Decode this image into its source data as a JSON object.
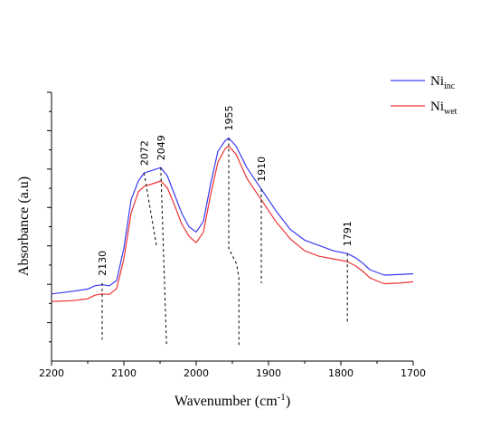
{
  "chart_data": {
    "type": "line",
    "xlabel": "Wavenumber (cm",
    "xlabel_sup": "-1",
    "xlabel_suffix": ")",
    "ylabel": "Absorbance (a.u)",
    "xlim": [
      2200,
      1700
    ],
    "x_reversed": true,
    "x_ticks": [
      2200,
      2100,
      2000,
      1900,
      1800,
      1700
    ],
    "y_ticks_unlabeled": true,
    "ylim": [
      0,
      1
    ],
    "legend": {
      "placement": "top-right",
      "entries": [
        {
          "base": "Ni",
          "sub": "inc",
          "color": "#3a3af0"
        },
        {
          "base": "Ni",
          "sub": "wet",
          "color": "#ee3333"
        }
      ]
    },
    "series": [
      {
        "name": "Ni_inc",
        "color": "#3a3af0",
        "x": [
          2200,
          2170,
          2150,
          2140,
          2130,
          2120,
          2110,
          2100,
          2090,
          2080,
          2072,
          2060,
          2049,
          2040,
          2030,
          2020,
          2010,
          2000,
          1990,
          1980,
          1970,
          1960,
          1955,
          1945,
          1930,
          1910,
          1890,
          1870,
          1850,
          1830,
          1810,
          1791,
          1780,
          1770,
          1760,
          1750,
          1740,
          1720,
          1700
        ],
        "y": [
          0.25,
          0.26,
          0.268,
          0.28,
          0.284,
          0.28,
          0.3,
          0.42,
          0.6,
          0.67,
          0.7,
          0.71,
          0.72,
          0.69,
          0.62,
          0.55,
          0.5,
          0.48,
          0.52,
          0.66,
          0.78,
          0.82,
          0.83,
          0.8,
          0.72,
          0.64,
          0.56,
          0.49,
          0.45,
          0.43,
          0.41,
          0.4,
          0.385,
          0.365,
          0.34,
          0.33,
          0.32,
          0.322,
          0.325
        ]
      },
      {
        "name": "Ni_wet",
        "color": "#ee3333",
        "x": [
          2200,
          2170,
          2150,
          2140,
          2130,
          2120,
          2110,
          2100,
          2090,
          2080,
          2072,
          2060,
          2049,
          2040,
          2030,
          2020,
          2010,
          2000,
          1990,
          1980,
          1970,
          1960,
          1955,
          1945,
          1930,
          1910,
          1890,
          1870,
          1850,
          1830,
          1810,
          1791,
          1780,
          1770,
          1760,
          1750,
          1740,
          1720,
          1700
        ],
        "y": [
          0.222,
          0.225,
          0.232,
          0.245,
          0.25,
          0.248,
          0.27,
          0.38,
          0.55,
          0.63,
          0.65,
          0.66,
          0.67,
          0.645,
          0.58,
          0.51,
          0.465,
          0.44,
          0.48,
          0.62,
          0.74,
          0.79,
          0.8,
          0.77,
          0.68,
          0.6,
          0.52,
          0.455,
          0.41,
          0.39,
          0.38,
          0.37,
          0.355,
          0.335,
          0.31,
          0.298,
          0.288,
          0.29,
          0.295
        ]
      }
    ],
    "annotations": [
      {
        "label": "2130",
        "line_x": [
          2130,
          2130
        ],
        "line_y": [
          0.29,
          0.08
        ]
      },
      {
        "label": "2072",
        "line_x": [
          2072,
          2055
        ],
        "line_y": [
          0.7,
          0.43
        ]
      },
      {
        "label": "2049",
        "line_x": [
          2049,
          2041
        ],
        "line_y": [
          0.72,
          0.06
        ]
      },
      {
        "label": "1955",
        "line_x": [
          1955,
          1955,
          1944,
          1941,
          1941
        ],
        "line_y": [
          0.83,
          0.42,
          0.36,
          0.31,
          0.05
        ]
      },
      {
        "label": "1910",
        "line_x": [
          1910,
          1910
        ],
        "line_y": [
          0.64,
          0.29
        ]
      },
      {
        "label": "1791",
        "line_x": [
          1791,
          1791
        ],
        "line_y": [
          0.4,
          0.14
        ]
      }
    ]
  }
}
